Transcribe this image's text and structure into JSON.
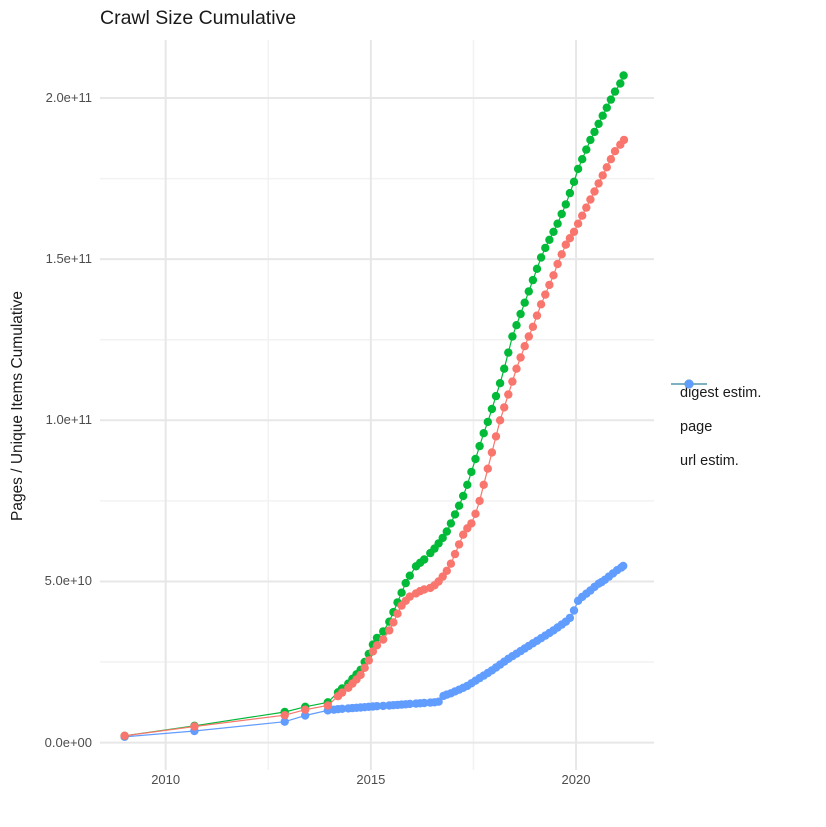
{
  "title": "Crawl Size Cumulative",
  "axes": {
    "y_label": "Pages / Unique Items Cumulative",
    "y_tick_labels": [
      "0.0e+00",
      "5.0e+10",
      "1.0e+11",
      "1.5e+11",
      "2.0e+11"
    ],
    "x_tick_labels": [
      "2010",
      "2015",
      "2020"
    ]
  },
  "legend": {
    "position": "right",
    "items": [
      {
        "label": "digest estim.",
        "color": "#F8766D"
      },
      {
        "label": "page",
        "color": "#00BA38"
      },
      {
        "label": "url estim.",
        "color": "#619CFF"
      }
    ]
  },
  "colors": {
    "grid_major": "#e7e7e7",
    "grid_minor": "#f2f2f2",
    "background": "#ffffff",
    "tick_text": "#4d4d4d",
    "title_text": "#1a1a1a"
  },
  "chart_data": {
    "type": "scatter",
    "title": "Crawl Size Cumulative",
    "xlabel": "",
    "ylabel": "Pages / Unique Items Cumulative",
    "grid": true,
    "legend_position": "right",
    "x_unit": "year",
    "value_unit": 1000000000,
    "xlim": [
      2008.4,
      2021.9
    ],
    "ylim_e9": [
      -8.5,
      218
    ],
    "x_breaks": [
      2010,
      2015,
      2020
    ],
    "x_minor_breaks": [
      2012.5,
      2017.5
    ],
    "y_breaks_e9": [
      0,
      50,
      100,
      150,
      200
    ],
    "y_minor_breaks_e9": [
      25,
      75,
      125,
      175
    ],
    "series": [
      {
        "name": "digest estim.",
        "color": "#F8766D",
        "points_year_value_e9": [
          [
            2009.0,
            2.1
          ],
          [
            2010.7,
            5.0
          ],
          [
            2012.9,
            8.5
          ],
          [
            2013.4,
            10.2
          ],
          [
            2013.95,
            11.5
          ],
          [
            2014.2,
            14.4
          ],
          [
            2014.3,
            15.5
          ],
          [
            2014.45,
            17.0
          ],
          [
            2014.55,
            18.3
          ],
          [
            2014.65,
            19.6
          ],
          [
            2014.75,
            21.0
          ],
          [
            2014.85,
            23.2
          ],
          [
            2014.95,
            25.5
          ],
          [
            2015.05,
            28.3
          ],
          [
            2015.15,
            30.2
          ],
          [
            2015.3,
            32.0
          ],
          [
            2015.45,
            34.8
          ],
          [
            2015.55,
            37.3
          ],
          [
            2015.65,
            40.0
          ],
          [
            2015.75,
            42.5
          ],
          [
            2015.85,
            44.0
          ],
          [
            2015.95,
            45.3
          ],
          [
            2016.1,
            46.3
          ],
          [
            2016.2,
            47.0
          ],
          [
            2016.3,
            47.5
          ],
          [
            2016.45,
            48.0
          ],
          [
            2016.55,
            48.8
          ],
          [
            2016.65,
            50.0
          ],
          [
            2016.75,
            51.5
          ],
          [
            2016.85,
            53.3
          ],
          [
            2016.95,
            55.5
          ],
          [
            2017.05,
            58.5
          ],
          [
            2017.15,
            61.5
          ],
          [
            2017.25,
            64.5
          ],
          [
            2017.35,
            66.5
          ],
          [
            2017.45,
            68.0
          ],
          [
            2017.55,
            71.0
          ],
          [
            2017.65,
            75.0
          ],
          [
            2017.75,
            80.0
          ],
          [
            2017.85,
            85.0
          ],
          [
            2017.95,
            90.0
          ],
          [
            2018.05,
            95.0
          ],
          [
            2018.15,
            100.0
          ],
          [
            2018.25,
            104.0
          ],
          [
            2018.35,
            108.0
          ],
          [
            2018.45,
            112.0
          ],
          [
            2018.55,
            116.0
          ],
          [
            2018.65,
            119.5
          ],
          [
            2018.75,
            123.0
          ],
          [
            2018.85,
            126.0
          ],
          [
            2018.95,
            129.0
          ],
          [
            2019.05,
            132.5
          ],
          [
            2019.15,
            136.0
          ],
          [
            2019.25,
            139.0
          ],
          [
            2019.35,
            142.0
          ],
          [
            2019.45,
            145.0
          ],
          [
            2019.55,
            148.5
          ],
          [
            2019.65,
            151.5
          ],
          [
            2019.75,
            154.5
          ],
          [
            2019.85,
            156.5
          ],
          [
            2019.95,
            158.5
          ],
          [
            2020.05,
            161.0
          ],
          [
            2020.15,
            163.5
          ],
          [
            2020.25,
            166.0
          ],
          [
            2020.35,
            168.5
          ],
          [
            2020.45,
            171.0
          ],
          [
            2020.55,
            173.5
          ],
          [
            2020.65,
            176.0
          ],
          [
            2020.75,
            178.5
          ],
          [
            2020.85,
            181.0
          ],
          [
            2020.95,
            183.5
          ],
          [
            2021.08,
            185.5
          ],
          [
            2021.17,
            187.0
          ]
        ]
      },
      {
        "name": "page",
        "color": "#00BA38",
        "points_year_value_e9": [
          [
            2009.0,
            2.1
          ],
          [
            2010.7,
            5.2
          ],
          [
            2012.9,
            9.5
          ],
          [
            2013.4,
            11.1
          ],
          [
            2013.95,
            12.5
          ],
          [
            2014.2,
            15.6
          ],
          [
            2014.3,
            16.8
          ],
          [
            2014.45,
            18.3
          ],
          [
            2014.55,
            19.8
          ],
          [
            2014.65,
            21.2
          ],
          [
            2014.75,
            22.6
          ],
          [
            2014.85,
            25.0
          ],
          [
            2014.95,
            27.5
          ],
          [
            2015.05,
            30.4
          ],
          [
            2015.15,
            32.5
          ],
          [
            2015.3,
            34.5
          ],
          [
            2015.45,
            37.5
          ],
          [
            2015.55,
            40.5
          ],
          [
            2015.65,
            43.5
          ],
          [
            2015.75,
            46.5
          ],
          [
            2015.85,
            49.5
          ],
          [
            2015.95,
            51.8
          ],
          [
            2016.1,
            54.7
          ],
          [
            2016.2,
            55.8
          ],
          [
            2016.3,
            56.8
          ],
          [
            2016.45,
            58.8
          ],
          [
            2016.55,
            60.2
          ],
          [
            2016.65,
            61.8
          ],
          [
            2016.75,
            63.5
          ],
          [
            2016.85,
            65.5
          ],
          [
            2016.95,
            68.0
          ],
          [
            2017.05,
            70.8
          ],
          [
            2017.15,
            73.5
          ],
          [
            2017.25,
            76.5
          ],
          [
            2017.35,
            80.0
          ],
          [
            2017.45,
            84.0
          ],
          [
            2017.55,
            88.0
          ],
          [
            2017.65,
            92.0
          ],
          [
            2017.75,
            96.0
          ],
          [
            2017.85,
            99.5
          ],
          [
            2017.95,
            103.5
          ],
          [
            2018.05,
            107.5
          ],
          [
            2018.15,
            111.5
          ],
          [
            2018.25,
            116.0
          ],
          [
            2018.35,
            121.0
          ],
          [
            2018.45,
            126.0
          ],
          [
            2018.55,
            129.5
          ],
          [
            2018.65,
            133.0
          ],
          [
            2018.75,
            136.5
          ],
          [
            2018.85,
            140.0
          ],
          [
            2018.95,
            143.5
          ],
          [
            2019.05,
            147.0
          ],
          [
            2019.15,
            150.5
          ],
          [
            2019.25,
            153.5
          ],
          [
            2019.35,
            156.0
          ],
          [
            2019.45,
            158.5
          ],
          [
            2019.55,
            161.0
          ],
          [
            2019.65,
            164.0
          ],
          [
            2019.75,
            167.0
          ],
          [
            2019.85,
            170.5
          ],
          [
            2019.95,
            174.0
          ],
          [
            2020.05,
            178.0
          ],
          [
            2020.15,
            181.0
          ],
          [
            2020.25,
            184.0
          ],
          [
            2020.35,
            187.0
          ],
          [
            2020.45,
            189.5
          ],
          [
            2020.55,
            192.0
          ],
          [
            2020.65,
            194.5
          ],
          [
            2020.75,
            197.0
          ],
          [
            2020.85,
            199.5
          ],
          [
            2020.95,
            202.0
          ],
          [
            2021.08,
            204.5
          ],
          [
            2021.16,
            207.0
          ]
        ]
      },
      {
        "name": "url estim.",
        "color": "#619CFF",
        "points_year_value_e9": [
          [
            2009.0,
            1.8
          ],
          [
            2010.7,
            3.6
          ],
          [
            2012.9,
            6.5
          ],
          [
            2013.4,
            8.4
          ],
          [
            2013.95,
            10.0
          ],
          [
            2014.1,
            10.2
          ],
          [
            2014.2,
            10.35
          ],
          [
            2014.3,
            10.5
          ],
          [
            2014.45,
            10.6
          ],
          [
            2014.55,
            10.7
          ],
          [
            2014.65,
            10.8
          ],
          [
            2014.75,
            10.9
          ],
          [
            2014.85,
            11.0
          ],
          [
            2014.95,
            11.1
          ],
          [
            2015.05,
            11.2
          ],
          [
            2015.15,
            11.3
          ],
          [
            2015.3,
            11.4
          ],
          [
            2015.45,
            11.5
          ],
          [
            2015.55,
            11.6
          ],
          [
            2015.65,
            11.7
          ],
          [
            2015.75,
            11.8
          ],
          [
            2015.85,
            11.9
          ],
          [
            2015.95,
            12.0
          ],
          [
            2016.1,
            12.1
          ],
          [
            2016.2,
            12.2
          ],
          [
            2016.3,
            12.3
          ],
          [
            2016.45,
            12.4
          ],
          [
            2016.55,
            12.5
          ],
          [
            2016.65,
            12.7
          ],
          [
            2016.77,
            14.5
          ],
          [
            2016.85,
            14.9
          ],
          [
            2016.95,
            15.3
          ],
          [
            2017.05,
            15.9
          ],
          [
            2017.15,
            16.4
          ],
          [
            2017.25,
            17.0
          ],
          [
            2017.35,
            17.6
          ],
          [
            2017.45,
            18.4
          ],
          [
            2017.55,
            19.2
          ],
          [
            2017.65,
            20.0
          ],
          [
            2017.75,
            20.8
          ],
          [
            2017.85,
            21.6
          ],
          [
            2017.95,
            22.4
          ],
          [
            2018.05,
            23.3
          ],
          [
            2018.15,
            24.2
          ],
          [
            2018.25,
            25.1
          ],
          [
            2018.35,
            26.0
          ],
          [
            2018.45,
            26.8
          ],
          [
            2018.55,
            27.6
          ],
          [
            2018.65,
            28.4
          ],
          [
            2018.75,
            29.2
          ],
          [
            2018.85,
            30.0
          ],
          [
            2018.95,
            30.8
          ],
          [
            2019.05,
            31.6
          ],
          [
            2019.15,
            32.4
          ],
          [
            2019.25,
            33.2
          ],
          [
            2019.35,
            34.0
          ],
          [
            2019.45,
            34.8
          ],
          [
            2019.55,
            35.7
          ],
          [
            2019.65,
            36.6
          ],
          [
            2019.75,
            37.5
          ],
          [
            2019.85,
            38.7
          ],
          [
            2019.95,
            41.0
          ],
          [
            2020.05,
            44.0
          ],
          [
            2020.15,
            45.2
          ],
          [
            2020.25,
            46.2
          ],
          [
            2020.35,
            47.2
          ],
          [
            2020.45,
            48.3
          ],
          [
            2020.55,
            49.3
          ],
          [
            2020.62,
            49.8
          ],
          [
            2020.7,
            50.5
          ],
          [
            2020.8,
            51.5
          ],
          [
            2020.9,
            52.5
          ],
          [
            2021.0,
            53.5
          ],
          [
            2021.1,
            54.3
          ],
          [
            2021.15,
            54.8
          ]
        ]
      }
    ]
  }
}
